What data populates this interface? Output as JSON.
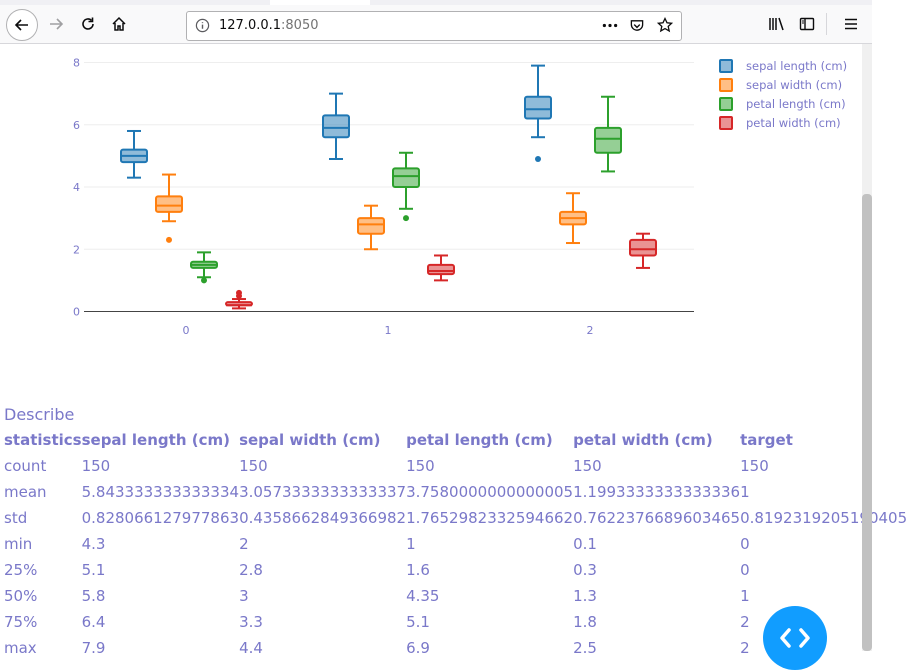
{
  "browser": {
    "url_host": "127.0.0.1",
    "url_port": ":8050"
  },
  "chart_data": {
    "type": "box",
    "categories": [
      "0",
      "1",
      "2"
    ],
    "ylim": [
      0,
      8
    ],
    "yticks": [
      0,
      2,
      4,
      6,
      8
    ],
    "grid": true,
    "legend_position": "top-right",
    "series": [
      {
        "name": "sepal length (cm)",
        "color": "#1f77b4",
        "boxes": [
          {
            "category": "0",
            "min": 4.3,
            "q1": 4.8,
            "median": 5.0,
            "q3": 5.2,
            "max": 5.8,
            "outliers": []
          },
          {
            "category": "1",
            "min": 4.9,
            "q1": 5.6,
            "median": 5.9,
            "q3": 6.3,
            "max": 7.0,
            "outliers": []
          },
          {
            "category": "2",
            "min": 5.6,
            "q1": 6.2,
            "median": 6.5,
            "q3": 6.9,
            "max": 7.9,
            "outliers": [
              4.9
            ]
          }
        ]
      },
      {
        "name": "sepal width (cm)",
        "color": "#ff7f0e",
        "boxes": [
          {
            "category": "0",
            "min": 2.9,
            "q1": 3.2,
            "median": 3.4,
            "q3": 3.7,
            "max": 4.4,
            "outliers": [
              2.3
            ]
          },
          {
            "category": "1",
            "min": 2.0,
            "q1": 2.5,
            "median": 2.8,
            "q3": 3.0,
            "max": 3.4,
            "outliers": []
          },
          {
            "category": "2",
            "min": 2.2,
            "q1": 2.8,
            "median": 3.0,
            "q3": 3.2,
            "max": 3.8,
            "outliers": []
          }
        ]
      },
      {
        "name": "petal length (cm)",
        "color": "#2ca02c",
        "boxes": [
          {
            "category": "0",
            "min": 1.1,
            "q1": 1.4,
            "median": 1.5,
            "q3": 1.6,
            "max": 1.9,
            "outliers": [
              1.0
            ]
          },
          {
            "category": "1",
            "min": 3.3,
            "q1": 4.0,
            "median": 4.35,
            "q3": 4.6,
            "max": 5.1,
            "outliers": [
              3.0
            ]
          },
          {
            "category": "2",
            "min": 4.5,
            "q1": 5.1,
            "median": 5.55,
            "q3": 5.9,
            "max": 6.9,
            "outliers": []
          }
        ]
      },
      {
        "name": "petal width (cm)",
        "color": "#d62728",
        "boxes": [
          {
            "category": "0",
            "min": 0.1,
            "q1": 0.2,
            "median": 0.2,
            "q3": 0.3,
            "max": 0.4,
            "outliers": [
              0.5,
              0.6
            ]
          },
          {
            "category": "1",
            "min": 1.0,
            "q1": 1.2,
            "median": 1.3,
            "q3": 1.5,
            "max": 1.8,
            "outliers": []
          },
          {
            "category": "2",
            "min": 1.4,
            "q1": 1.8,
            "median": 2.0,
            "q3": 2.3,
            "max": 2.5,
            "outliers": []
          }
        ]
      }
    ]
  },
  "describe": {
    "title": "Describe",
    "headers": [
      "statistics",
      "sepal length (cm)",
      "sepal width (cm)",
      "petal length (cm)",
      "petal width (cm)",
      "target"
    ],
    "rows": [
      [
        "count",
        "150",
        "150",
        "150",
        "150",
        "150"
      ],
      [
        "mean",
        "5.843333333333334",
        "3.0573333333333337",
        "3.7580000000000005",
        "1.1993333333333336",
        "1"
      ],
      [
        "std",
        "0.828066127977863",
        "0.4358662849366982",
        "1.7652982332594662",
        "0.7622376689603465",
        "0.8192319205190405"
      ],
      [
        "min",
        "4.3",
        "2",
        "1",
        "0.1",
        "0"
      ],
      [
        "25%",
        "5.1",
        "2.8",
        "1.6",
        "0.3",
        "0"
      ],
      [
        "50%",
        "5.8",
        "3",
        "4.35",
        "1.3",
        "1"
      ],
      [
        "75%",
        "6.4",
        "3.3",
        "5.1",
        "1.8",
        "2"
      ],
      [
        "max",
        "7.9",
        "4.4",
        "6.9",
        "2.5",
        "2"
      ]
    ]
  }
}
